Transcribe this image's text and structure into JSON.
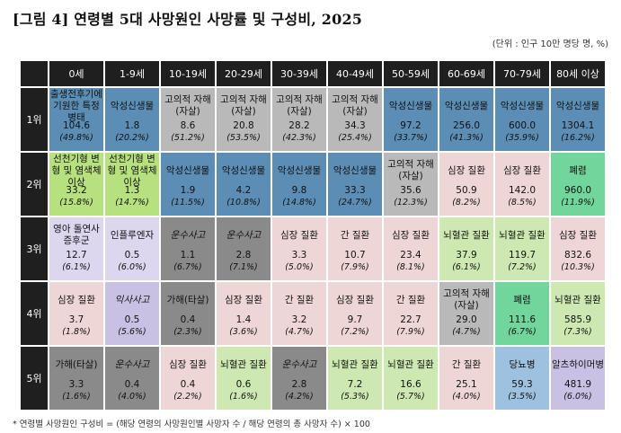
{
  "title": "[그림 4]  연령별 5대 사망원인 사망률 및 구성비, 2025",
  "unit": "(단위 : 인구 10만 명당 명, %)",
  "columns": [
    "0세",
    "1-9세",
    "10-19세",
    "20-29세",
    "30-39세",
    "40-49세",
    "50-59세",
    "60-69세",
    "70-79세",
    "80세 이상"
  ],
  "ranks": [
    "1위",
    "2위",
    "3위",
    "4위",
    "5위"
  ],
  "rows": [
    [
      {
        "name": "출생전후기에 기원한 특정병태",
        "value": "104.6",
        "pct": "(49.8%)",
        "color": "#5b8db5"
      },
      {
        "name": "악성신생물",
        "value": "1.8",
        "pct": "(20.2%)",
        "color": "#5b8db5"
      },
      {
        "name": "고의적 자해(자살)",
        "value": "8.6",
        "pct": "(51.2%)",
        "color": "#b9b9b9"
      },
      {
        "name": "고의적 자해(자살)",
        "value": "20.8",
        "pct": "(53.5%)",
        "color": "#b9b9b9"
      },
      {
        "name": "고의적 자해(자살)",
        "value": "28.2",
        "pct": "(42.3%)",
        "color": "#b9b9b9"
      },
      {
        "name": "고의적 자해(자살)",
        "value": "34.3",
        "pct": "(25.4%)",
        "color": "#b9b9b9"
      },
      {
        "name": "악성신생물",
        "value": "97.2",
        "pct": "(33.7%)",
        "color": "#5b8db5"
      },
      {
        "name": "악성신생물",
        "value": "256.0",
        "pct": "(41.3%)",
        "color": "#5b8db5"
      },
      {
        "name": "악성신생물",
        "value": "600.0",
        "pct": "(35.9%)",
        "color": "#5b8db5"
      },
      {
        "name": "악성신생물",
        "value": "1304.1",
        "pct": "(16.2%)",
        "color": "#5b8db5"
      }
    ],
    [
      {
        "name": "선천기형 변형 및 염색체이상",
        "value": "33.2",
        "pct": "(15.8%)",
        "color": "#b7e07e"
      },
      {
        "name": "선천기형 변형 및 염색체이상",
        "value": "1.3",
        "pct": "(14.7%)",
        "color": "#b7e07e"
      },
      {
        "name": "악성신생물",
        "value": "1.9",
        "pct": "(11.5%)",
        "color": "#5b8db5"
      },
      {
        "name": "악성신생물",
        "value": "4.2",
        "pct": "(10.8%)",
        "color": "#5b8db5"
      },
      {
        "name": "악성신생물",
        "value": "9.8",
        "pct": "(14.8%)",
        "color": "#5b8db5"
      },
      {
        "name": "악성신생물",
        "value": "33.3",
        "pct": "(24.7%)",
        "color": "#5b8db5"
      },
      {
        "name": "고의적 자해(자살)",
        "value": "35.6",
        "pct": "(12.3%)",
        "color": "#b9b9b9"
      },
      {
        "name": "심장 질환",
        "value": "50.9",
        "pct": "(8.2%)",
        "color": "#efd6d6"
      },
      {
        "name": "심장 질환",
        "value": "142.0",
        "pct": "(8.5%)",
        "color": "#efd6d6"
      },
      {
        "name": "폐렴",
        "value": "960.0",
        "pct": "(11.9%)",
        "color": "#72d69c"
      }
    ],
    [
      {
        "name": "영아 돌연사 증후군",
        "value": "12.7",
        "pct": "(6.1%)",
        "color": "#dcd6ee"
      },
      {
        "name": "인플루엔자",
        "value": "0.5",
        "pct": "(6.0%)",
        "color": "#dcd6ee"
      },
      {
        "name": "운수사고",
        "value": "1.1",
        "pct": "(6.7%)",
        "color": "#8a8a8a",
        "italic": true
      },
      {
        "name": "운수사고",
        "value": "2.8",
        "pct": "(7.1%)",
        "color": "#8a8a8a",
        "italic": true
      },
      {
        "name": "심장 질환",
        "value": "3.3",
        "pct": "(5.0%)",
        "color": "#efd6d6"
      },
      {
        "name": "간 질환",
        "value": "10.7",
        "pct": "(7.9%)",
        "color": "#efd6d6"
      },
      {
        "name": "심장 질환",
        "value": "23.4",
        "pct": "(8.1%)",
        "color": "#efd6d6"
      },
      {
        "name": "뇌혈관 질환",
        "value": "37.9",
        "pct": "(6.1%)",
        "color": "#cde8b0"
      },
      {
        "name": "뇌혈관 질환",
        "value": "119.7",
        "pct": "(7.2%)",
        "color": "#cde8b0"
      },
      {
        "name": "심장 질환",
        "value": "832.6",
        "pct": "(10.3%)",
        "color": "#efd6d6"
      }
    ],
    [
      {
        "name": "심장 질환",
        "value": "3.7",
        "pct": "(1.8%)",
        "color": "#efd6d6"
      },
      {
        "name": "익사사고",
        "value": "0.5",
        "pct": "(5.6%)",
        "color": "#c9c1e3",
        "italic": true
      },
      {
        "name": "가해(타살)",
        "value": "0.4",
        "pct": "(2.3%)",
        "color": "#8a8a8a"
      },
      {
        "name": "심장 질환",
        "value": "1.4",
        "pct": "(3.6%)",
        "color": "#efd6d6"
      },
      {
        "name": "간 질환",
        "value": "3.2",
        "pct": "(4.7%)",
        "color": "#efd6d6"
      },
      {
        "name": "심장 질환",
        "value": "9.7",
        "pct": "(7.2%)",
        "color": "#efd6d6"
      },
      {
        "name": "간 질환",
        "value": "22.7",
        "pct": "(7.9%)",
        "color": "#efd6d6"
      },
      {
        "name": "고의적 자해(자살)",
        "value": "29.0",
        "pct": "(4.7%)",
        "color": "#b9b9b9"
      },
      {
        "name": "폐렴",
        "value": "111.6",
        "pct": "(6.7%)",
        "color": "#72d69c"
      },
      {
        "name": "뇌혈관 질환",
        "value": "585.9",
        "pct": "(7.3%)",
        "color": "#cde8b0"
      }
    ],
    [
      {
        "name": "가해(타살)",
        "value": "3.3",
        "pct": "(1.6%)",
        "color": "#8a8a8a"
      },
      {
        "name": "운수사고",
        "value": "0.4",
        "pct": "(4.0%)",
        "color": "#8a8a8a",
        "italic": true
      },
      {
        "name": "심장 질환",
        "value": "0.4",
        "pct": "(2.2%)",
        "color": "#efd6d6"
      },
      {
        "name": "뇌혈관 질환",
        "value": "0.6",
        "pct": "(1.6%)",
        "color": "#cde8b0"
      },
      {
        "name": "운수사고",
        "value": "2.8",
        "pct": "(4.2%)",
        "color": "#8a8a8a",
        "italic": true
      },
      {
        "name": "뇌혈관 질환",
        "value": "7.2",
        "pct": "(5.3%)",
        "color": "#cde8b0"
      },
      {
        "name": "뇌혈관 질환",
        "value": "16.6",
        "pct": "(5.7%)",
        "color": "#cde8b0"
      },
      {
        "name": "간 질환",
        "value": "25.1",
        "pct": "(4.0%)",
        "color": "#efd6d6"
      },
      {
        "name": "당뇨병",
        "value": "59.3",
        "pct": "(3.5%)",
        "color": "#9ec1df"
      },
      {
        "name": "알츠하이머병",
        "value": "481.9",
        "pct": "(6.0%)",
        "color": "#c9c1e3"
      }
    ]
  ],
  "note": "* 연령별 사망원인 구성비 = (해당 연령의 사망원인별 사망자 수 / 해당 연령의 총 사망자 수) × 100"
}
